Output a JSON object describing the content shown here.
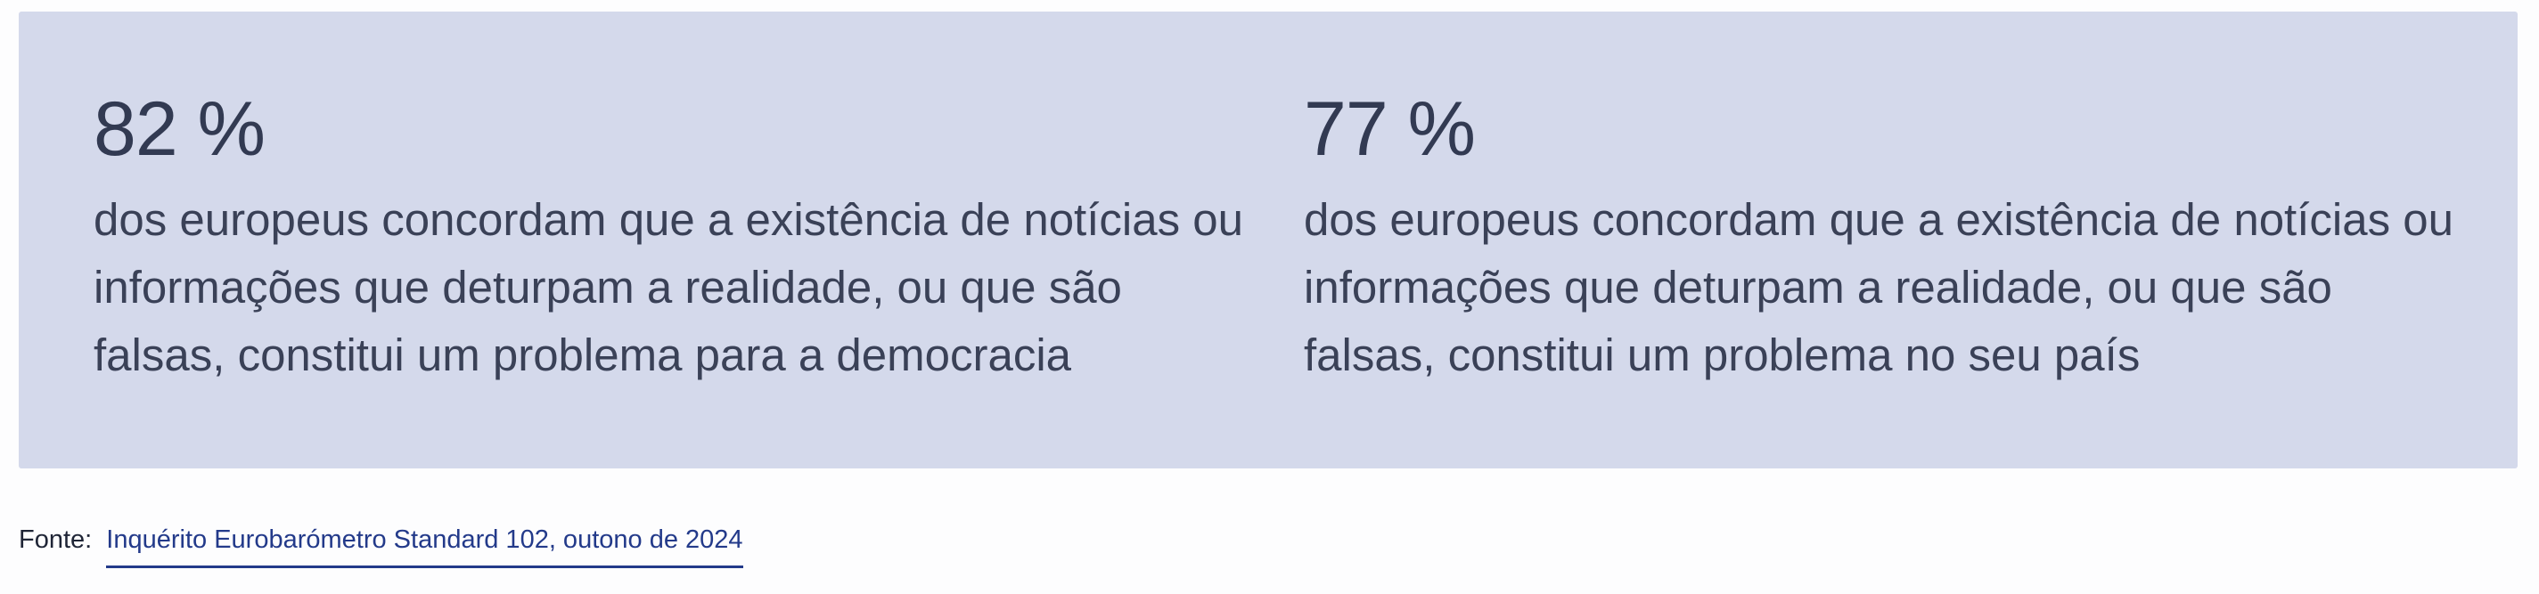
{
  "stats": [
    {
      "value": "82 %",
      "description": "dos europeus concordam que a existência de notícias ou informações que deturpam a realidade, ou que são falsas, constitui um problema para a democracia"
    },
    {
      "value": "77 %",
      "description": "dos europeus concordam que a existência de notícias ou informações que deturpam a realidade, ou que são falsas, constitui um problema no seu país"
    }
  ],
  "source": {
    "label": "Fonte:",
    "link_text": "Inquérito Eurobarómetro Standard 102, outono de 2024"
  },
  "colors": {
    "panel_background": "#d4d9eb",
    "text": "#3a4157",
    "link": "#233a8a"
  }
}
